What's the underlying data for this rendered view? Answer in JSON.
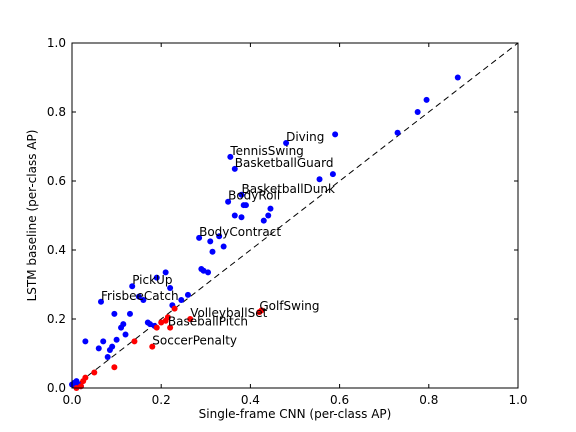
{
  "chart_data": {
    "type": "scatter",
    "title": "",
    "xlabel": "Single-frame CNN (per-class AP)",
    "ylabel": "LSTM baseline (per-class AP)",
    "xlim": [
      0.0,
      1.0
    ],
    "ylim": [
      0.0,
      1.0
    ],
    "x_ticks": [
      "0.0",
      "0.2",
      "0.4",
      "0.6",
      "0.8",
      "1.0"
    ],
    "y_ticks": [
      "0.0",
      "0.2",
      "0.4",
      "0.6",
      "0.8",
      "1.0"
    ],
    "reference_line": {
      "style": "dashed",
      "color": "#000000",
      "from": [
        0,
        0
      ],
      "to": [
        1,
        1
      ]
    },
    "colors": {
      "above_diagonal": "#0000ff",
      "below_diagonal": "#ff0000"
    },
    "series": [
      {
        "color": "#0000ff",
        "points": [
          [
            0.0,
            0.01
          ],
          [
            0.005,
            0.015
          ],
          [
            0.01,
            0.02
          ],
          [
            0.01,
            0.005
          ],
          [
            0.015,
            0.01
          ],
          [
            0.02,
            0.005
          ],
          [
            0.03,
            0.135
          ],
          [
            0.06,
            0.115
          ],
          [
            0.065,
            0.25
          ],
          [
            0.07,
            0.135
          ],
          [
            0.08,
            0.09
          ],
          [
            0.085,
            0.11
          ],
          [
            0.09,
            0.12
          ],
          [
            0.095,
            0.215
          ],
          [
            0.1,
            0.14
          ],
          [
            0.11,
            0.175
          ],
          [
            0.115,
            0.185
          ],
          [
            0.12,
            0.155
          ],
          [
            0.13,
            0.215
          ],
          [
            0.135,
            0.295
          ],
          [
            0.15,
            0.265
          ],
          [
            0.16,
            0.255
          ],
          [
            0.17,
            0.19
          ],
          [
            0.175,
            0.185
          ],
          [
            0.185,
            0.18
          ],
          [
            0.19,
            0.32
          ],
          [
            0.21,
            0.335
          ],
          [
            0.22,
            0.29
          ],
          [
            0.225,
            0.24
          ],
          [
            0.245,
            0.255
          ],
          [
            0.26,
            0.27
          ],
          [
            0.285,
            0.435
          ],
          [
            0.29,
            0.345
          ],
          [
            0.295,
            0.34
          ],
          [
            0.305,
            0.335
          ],
          [
            0.31,
            0.425
          ],
          [
            0.315,
            0.395
          ],
          [
            0.33,
            0.44
          ],
          [
            0.34,
            0.41
          ],
          [
            0.35,
            0.54
          ],
          [
            0.355,
            0.67
          ],
          [
            0.365,
            0.635
          ],
          [
            0.365,
            0.5
          ],
          [
            0.38,
            0.495
          ],
          [
            0.38,
            0.56
          ],
          [
            0.385,
            0.53
          ],
          [
            0.39,
            0.53
          ],
          [
            0.43,
            0.485
          ],
          [
            0.44,
            0.5
          ],
          [
            0.445,
            0.52
          ],
          [
            0.48,
            0.71
          ],
          [
            0.555,
            0.605
          ],
          [
            0.585,
            0.62
          ],
          [
            0.59,
            0.735
          ],
          [
            0.73,
            0.74
          ],
          [
            0.775,
            0.8
          ],
          [
            0.795,
            0.835
          ],
          [
            0.865,
            0.9
          ]
        ]
      },
      {
        "color": "#ff0000",
        "points": [
          [
            0.01,
            0.0
          ],
          [
            0.02,
            0.005
          ],
          [
            0.025,
            0.02
          ],
          [
            0.03,
            0.03
          ],
          [
            0.05,
            0.045
          ],
          [
            0.095,
            0.06
          ],
          [
            0.14,
            0.135
          ],
          [
            0.18,
            0.12
          ],
          [
            0.19,
            0.175
          ],
          [
            0.2,
            0.19
          ],
          [
            0.21,
            0.195
          ],
          [
            0.215,
            0.205
          ],
          [
            0.22,
            0.175
          ],
          [
            0.23,
            0.23
          ],
          [
            0.265,
            0.2
          ],
          [
            0.42,
            0.22
          ],
          [
            0.425,
            0.225
          ]
        ]
      }
    ],
    "annotations": [
      {
        "text": "Diving",
        "x": 0.48,
        "y": 0.71
      },
      {
        "text": "TennisSwing",
        "x": 0.355,
        "y": 0.67
      },
      {
        "text": "BasketballGuard",
        "x": 0.365,
        "y": 0.635
      },
      {
        "text": "BasketballDunk",
        "x": 0.38,
        "y": 0.56
      },
      {
        "text": "BodyRoll",
        "x": 0.35,
        "y": 0.54
      },
      {
        "text": "BodyContract",
        "x": 0.285,
        "y": 0.435
      },
      {
        "text": "PickUp",
        "x": 0.135,
        "y": 0.295
      },
      {
        "text": "FrisbeeCatch",
        "x": 0.065,
        "y": 0.25
      },
      {
        "text": "GolfSwing",
        "x": 0.42,
        "y": 0.22
      },
      {
        "text": "VolleyballSet",
        "x": 0.265,
        "y": 0.2
      },
      {
        "text": "BaseballPitch",
        "x": 0.215,
        "y": 0.175
      },
      {
        "text": "SoccerPenalty",
        "x": 0.18,
        "y": 0.12
      }
    ]
  }
}
